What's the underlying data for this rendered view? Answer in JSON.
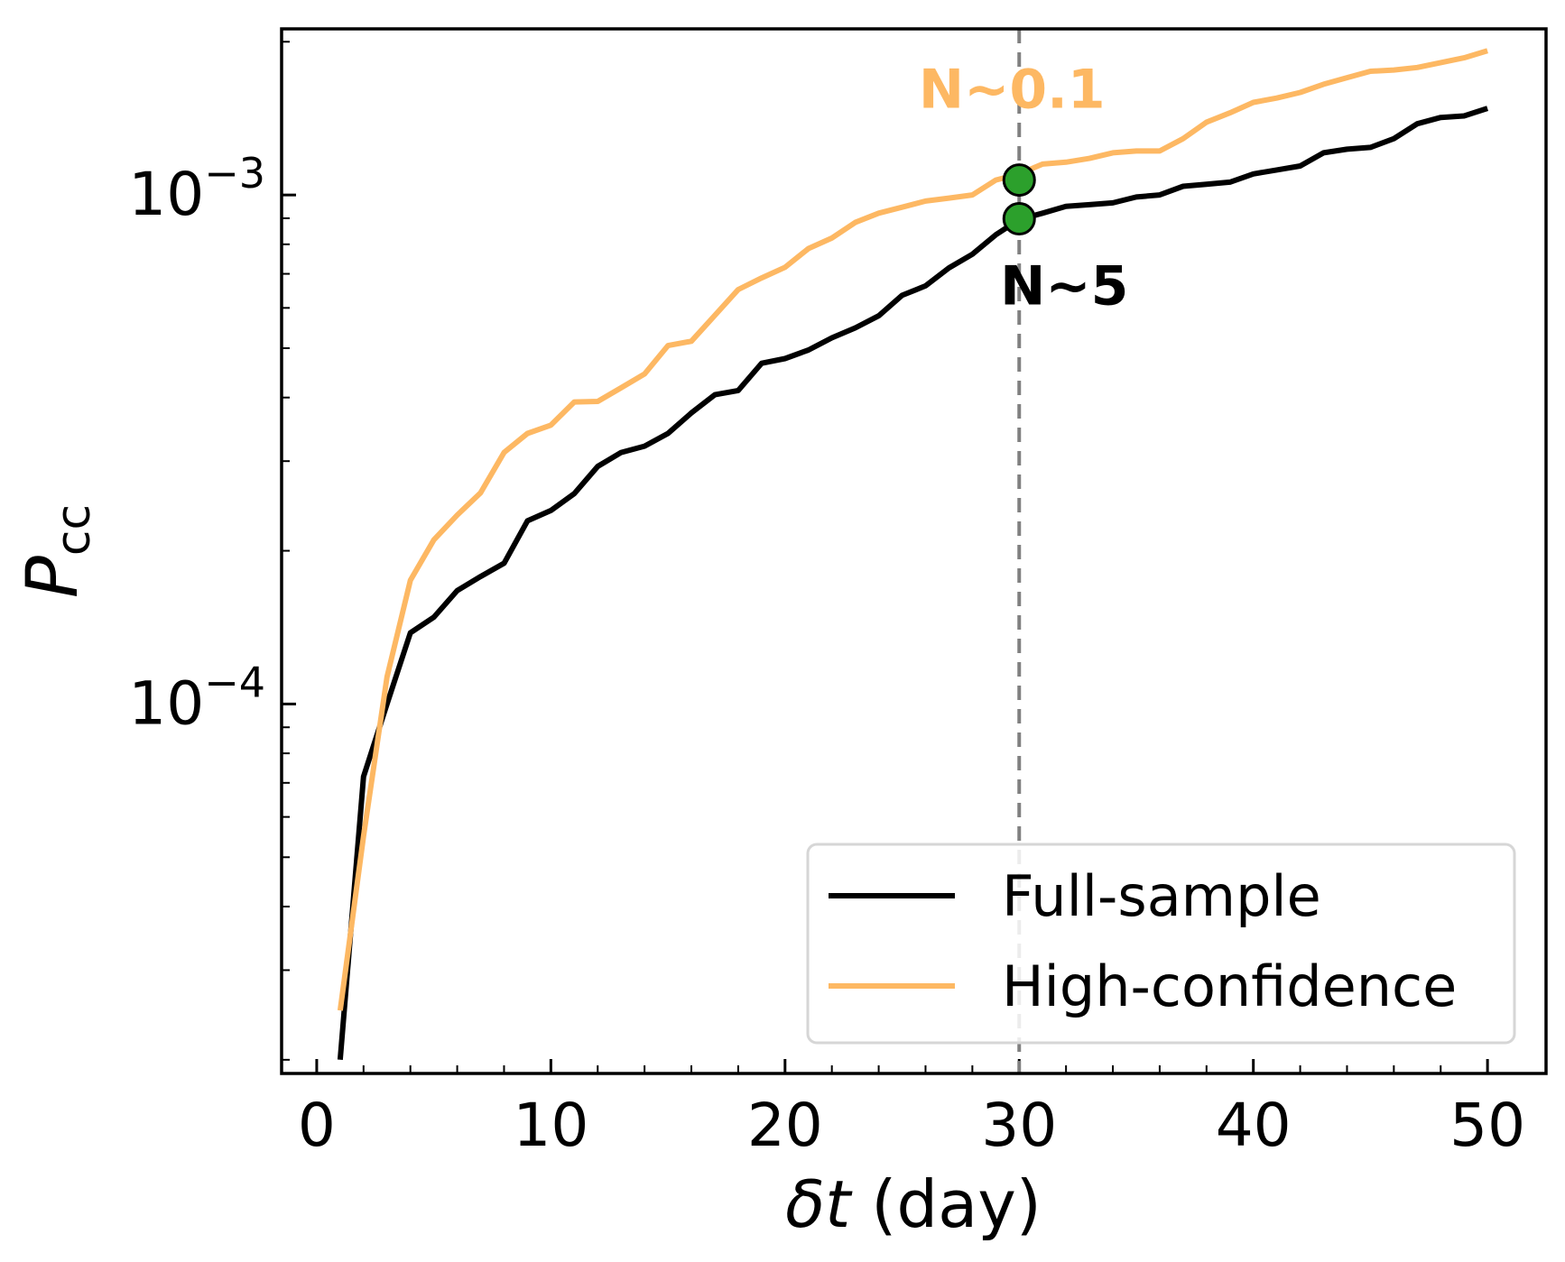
{
  "chart_data": {
    "type": "line",
    "xlabel": "δt (day)",
    "ylabel": "P_cc",
    "xlim": [
      -1.5,
      52.5
    ],
    "ylim": [
      1.88e-05,
      0.00212
    ],
    "yscale": "log",
    "xticks": [
      0,
      10,
      20,
      30,
      40,
      50
    ],
    "yticks": [
      {
        "value": 0.0001,
        "base": "10",
        "exp": "−4"
      },
      {
        "value": 0.001,
        "base": "10",
        "exp": "−3"
      }
    ],
    "legend_position": "lower-right",
    "series": [
      {
        "name": "Full-sample",
        "color": "#000000",
        "x": [
          1,
          2,
          3,
          4,
          5,
          6,
          7,
          8,
          9,
          10,
          11,
          12,
          13,
          14,
          15,
          16,
          17,
          18,
          19,
          20,
          21,
          22,
          23,
          24,
          25,
          26,
          27,
          28,
          29,
          30,
          31,
          32,
          33,
          34,
          35,
          36,
          37,
          38,
          39,
          40,
          41,
          42,
          43,
          44,
          45,
          46,
          47,
          48,
          49,
          50
        ],
        "y": [
          2e-05,
          7.2e-05,
          0.0001,
          0.000138,
          0.000148,
          0.000167,
          0.000178,
          0.000189,
          0.000229,
          0.00024,
          0.000259,
          0.000293,
          0.000312,
          0.000321,
          0.00034,
          0.000373,
          0.000405,
          0.000413,
          0.000467,
          0.000477,
          0.000496,
          0.000524,
          0.000548,
          0.000579,
          0.000635,
          0.000663,
          0.000719,
          0.000765,
          0.000835,
          0.000895,
          0.000921,
          0.00095,
          0.000957,
          0.000965,
          0.000991,
          0.001,
          0.00104,
          0.00105,
          0.00106,
          0.0011,
          0.00112,
          0.00114,
          0.00121,
          0.00123,
          0.00124,
          0.00129,
          0.00138,
          0.00142,
          0.00143,
          0.00148
        ]
      },
      {
        "name": "High-confidence",
        "color": "#fdb863",
        "x": [
          1,
          2,
          3,
          4,
          5,
          6,
          7,
          8,
          9,
          10,
          11,
          12,
          13,
          14,
          15,
          16,
          17,
          18,
          19,
          20,
          21,
          22,
          23,
          24,
          25,
          26,
          27,
          28,
          29,
          30,
          31,
          32,
          33,
          34,
          35,
          36,
          37,
          38,
          39,
          40,
          41,
          42,
          43,
          44,
          45,
          46,
          47,
          48,
          49,
          50
        ],
        "y": [
          2.5e-05,
          5.5e-05,
          0.000113,
          0.000175,
          0.00021,
          0.000235,
          0.00026,
          0.000312,
          0.00034,
          0.000353,
          0.000392,
          0.000393,
          0.000418,
          0.000445,
          0.000506,
          0.000516,
          0.00058,
          0.000652,
          0.000687,
          0.000721,
          0.000785,
          0.000823,
          0.000883,
          0.000921,
          0.000946,
          0.000973,
          0.000986,
          0.001,
          0.00107,
          0.0011,
          0.00115,
          0.00116,
          0.00118,
          0.00121,
          0.00122,
          0.00122,
          0.00129,
          0.00139,
          0.00145,
          0.00152,
          0.00155,
          0.00159,
          0.00165,
          0.0017,
          0.00175,
          0.00176,
          0.00178,
          0.00182,
          0.00186,
          0.00192
        ]
      }
    ],
    "vline": {
      "x": 30,
      "color": "#808080",
      "style": "dashed"
    },
    "markers": [
      {
        "x": 30,
        "y": 0.00107,
        "color": "#2ca02c"
      },
      {
        "x": 30,
        "y": 0.000898,
        "color": "#2ca02c"
      }
    ],
    "annotations": [
      {
        "text": "N~0.1",
        "x": 30,
        "y": 0.00107,
        "color": "#fdb863",
        "position": "above"
      },
      {
        "text": "N~5",
        "x": 30,
        "y": 0.000898,
        "color": "#000000",
        "position": "below"
      }
    ]
  }
}
